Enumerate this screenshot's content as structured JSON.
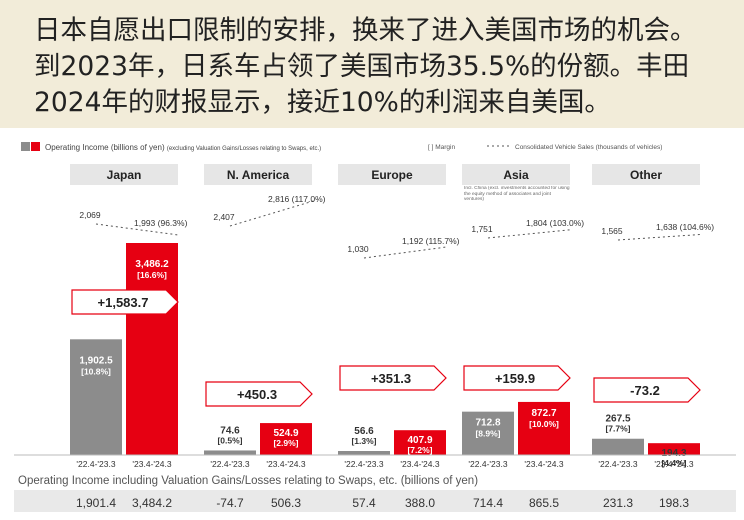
{
  "caption": {
    "lines": [
      "日本自愿出口限制的安排，换来了进入美国市场的机会。",
      "到2023年，日系车占领了美国市场35.5%的份额。丰田",
      "2024年的财报显示，接近10%的利润来自美国。"
    ]
  },
  "chart_data": {
    "type": "bar",
    "legend": {
      "income": "Operating Income (billions of yen)",
      "income_note": "(excluding Valuation Gains/Losses relating to Swaps, etc.)",
      "margin": "[ ] Margin",
      "sales": "Consolidated Vehicle Sales (thousands of vehicles)"
    },
    "periods": [
      "'22.4-'23.3",
      "'23.4-'24.3"
    ],
    "colors": {
      "prev": "#8c8c8c",
      "curr": "#e60012",
      "header": "#e6e6e6"
    },
    "regions": [
      {
        "name": "Japan",
        "income": [
          1902.5,
          3486.2
        ],
        "income_labels": [
          "1,902.5",
          "3,486.2"
        ],
        "margins": [
          "[10.8%]",
          "[16.6%]"
        ],
        "change": "+1,583.7",
        "sales": [
          "2,069",
          "1,993 (96.3%)"
        ],
        "including_swaps": [
          "1,901.4",
          "3,484.2"
        ]
      },
      {
        "name": "N. America",
        "income": [
          74.6,
          524.9
        ],
        "income_labels": [
          "74.6",
          "524.9"
        ],
        "margins": [
          "[0.5%]",
          "[2.9%]"
        ],
        "change": "+450.3",
        "sales": [
          "2,407",
          "2,816 (117.0%)"
        ],
        "including_swaps": [
          "-74.7",
          "506.3"
        ]
      },
      {
        "name": "Europe",
        "income": [
          56.6,
          407.9
        ],
        "income_labels": [
          "56.6",
          "407.9"
        ],
        "margins": [
          "[1.3%]",
          "[7.2%]"
        ],
        "change": "+351.3",
        "sales": [
          "1,030",
          "1,192 (115.7%)"
        ],
        "including_swaps": [
          "57.4",
          "388.0"
        ]
      },
      {
        "name": "Asia",
        "note": "Incl. China (excl. investments accounted for using the equity method of associates and joint ventures)",
        "income": [
          712.8,
          872.7
        ],
        "income_labels": [
          "712.8",
          "872.7"
        ],
        "margins": [
          "[8.9%]",
          "[10.0%]"
        ],
        "change": "+159.9",
        "sales": [
          "1,751",
          "1,804 (103.0%)"
        ],
        "including_swaps": [
          "714.4",
          "865.5"
        ]
      },
      {
        "name": "Other",
        "income": [
          267.5,
          194.3
        ],
        "income_labels": [
          "267.5",
          "194.3"
        ],
        "margins": [
          "[7.7%]",
          "[4.4%]"
        ],
        "change": "-73.2",
        "sales": [
          "1,565",
          "1,638 (104.6%)"
        ],
        "including_swaps": [
          "231.3",
          "198.3"
        ]
      }
    ],
    "footer_label": "Operating Income including Valuation Gains/Losses relating to Swaps, etc. (billions of yen)"
  }
}
